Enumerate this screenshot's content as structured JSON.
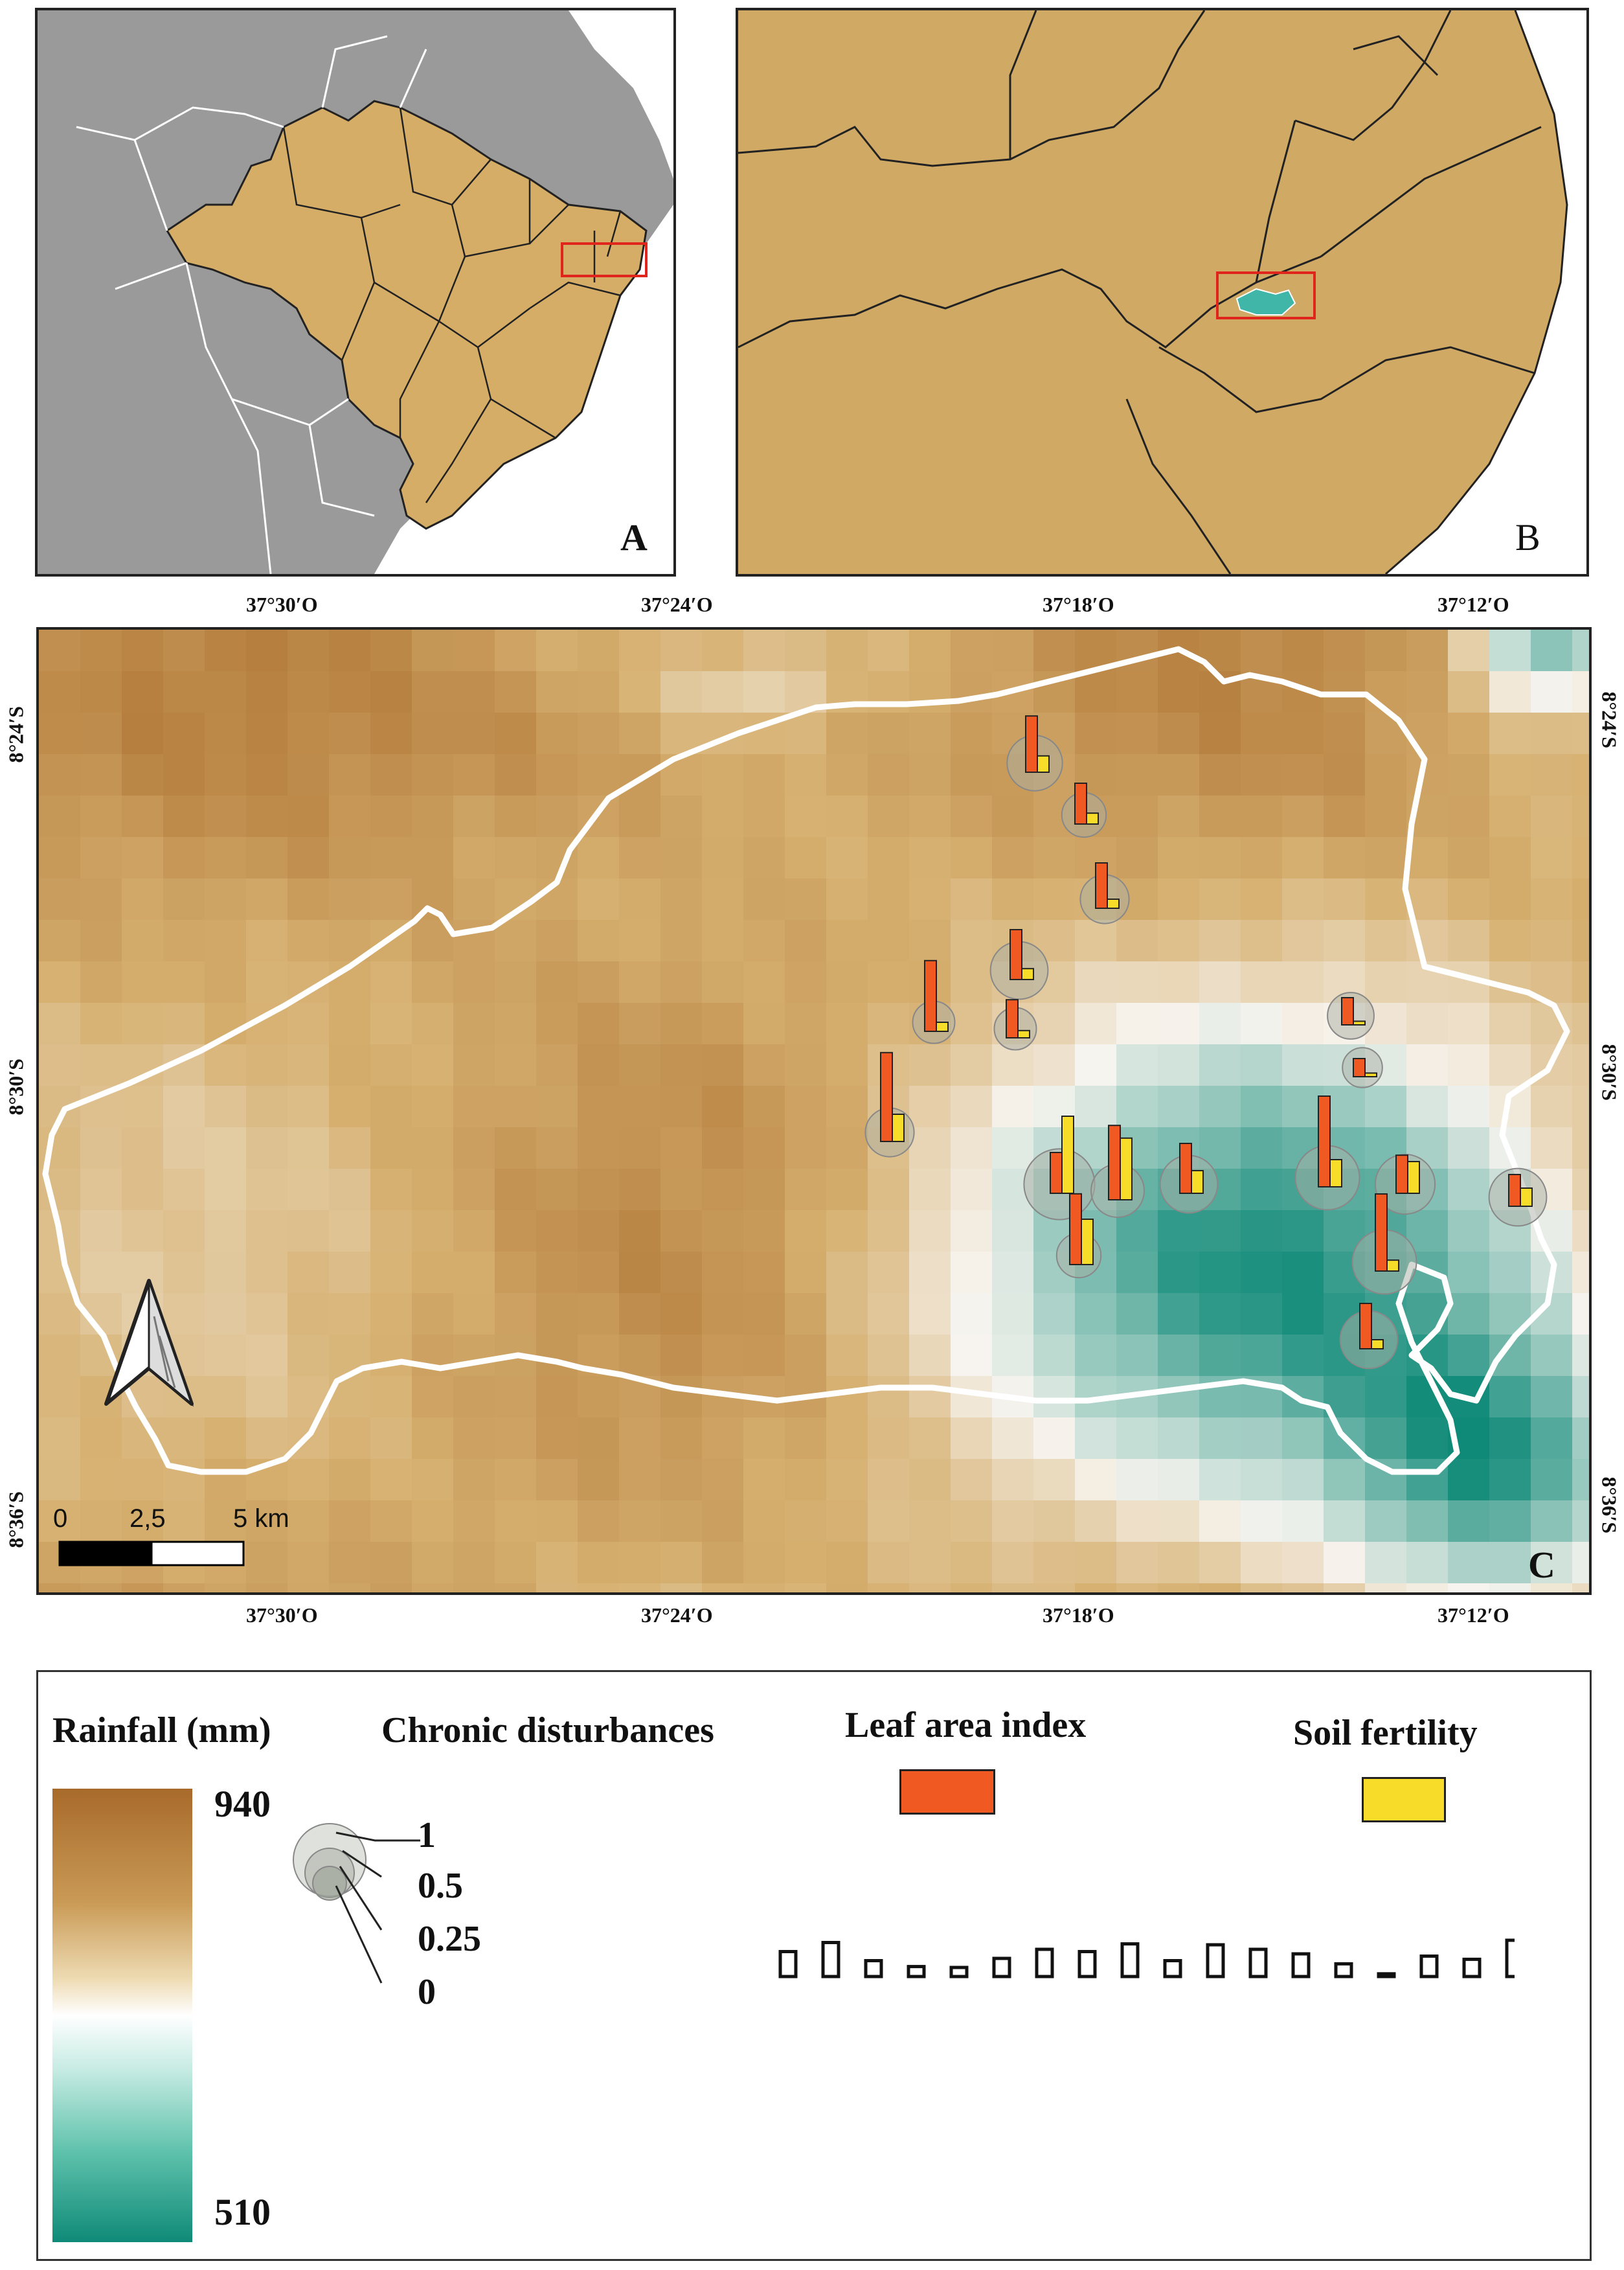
{
  "panels": {
    "a": {
      "label": "A"
    },
    "b": {
      "label": "B"
    },
    "c": {
      "label": "C"
    }
  },
  "colors": {
    "brazil_fill": "#d6ad66",
    "ocean_land": "#9a9a9a",
    "study_area": "#3fb6a8",
    "highlight_box": "#e0261c",
    "rain_high": "#a86a2a",
    "rain_mid": "#f7f4ef",
    "rain_low": "#0f8a78",
    "leaf_area": "#f05a22",
    "soil_fertility": "#f8dc2a"
  },
  "coordinates": {
    "top": [
      "37°30′O",
      "37°24′O",
      "37°18′O",
      "37°12′O"
    ],
    "bottom": [
      "37°30′O",
      "37°24′O",
      "37°18′O",
      "37°12′O"
    ],
    "left": [
      "8°24′S",
      "8°30′S",
      "8°36′S"
    ],
    "right": [
      "8°24′S",
      "8°30′S",
      "8°36′S"
    ]
  },
  "scale_bar": {
    "labels": [
      "0",
      "2,5",
      "5 km"
    ]
  },
  "north_arrow": {
    "icon": "north-arrow-icon"
  },
  "legend": {
    "rainfall": {
      "title": "Rainfall (mm)",
      "max": "940",
      "min": "510"
    },
    "chronic": {
      "title": "Chronic disturbances",
      "values": [
        "1",
        "0.5",
        "0.25",
        "0"
      ]
    },
    "leaf": {
      "title": "Leaf area index"
    },
    "soil": {
      "title": "Soil fertility"
    }
  },
  "sites": [
    {
      "id": 1,
      "leaf": 0.62,
      "soil": 0.18,
      "cd": 0.55
    },
    {
      "id": 2,
      "leaf": 0.45,
      "soil": 0.12,
      "cd": 0.3
    },
    {
      "id": 3,
      "leaf": 0.5,
      "soil": 0.1,
      "cd": 0.4
    },
    {
      "id": 4,
      "leaf": 0.55,
      "soil": 0.12,
      "cd": 0.6
    },
    {
      "id": 5,
      "leaf": 0.78,
      "soil": 0.1,
      "cd": 0.25
    },
    {
      "id": 6,
      "leaf": 0.42,
      "soil": 0.08,
      "cd": 0.25
    },
    {
      "id": 7,
      "leaf": 0.3,
      "soil": 0.04,
      "cd": 0.35
    },
    {
      "id": 8,
      "leaf": 0.2,
      "soil": 0.04,
      "cd": 0.2
    },
    {
      "id": 9,
      "leaf": 0.98,
      "soil": 0.3,
      "cd": 0.4
    },
    {
      "id": 10,
      "leaf": 0.45,
      "soil": 0.85,
      "cd": 0.9
    },
    {
      "id": 11,
      "leaf": 0.82,
      "soil": 0.68,
      "cd": 0.5
    },
    {
      "id": 12,
      "leaf": 0.55,
      "soil": 0.25,
      "cd": 0.6
    },
    {
      "id": 13,
      "leaf": 1.0,
      "soil": 0.3,
      "cd": 0.75
    },
    {
      "id": 14,
      "leaf": 0.42,
      "soil": 0.35,
      "cd": 0.65
    },
    {
      "id": 15,
      "leaf": 0.35,
      "soil": 0.2,
      "cd": 0.6
    },
    {
      "id": 16,
      "leaf": 0.78,
      "soil": 0.5,
      "cd": 0.3
    },
    {
      "id": 17,
      "leaf": 0.85,
      "soil": 0.12,
      "cd": 0.75
    },
    {
      "id": 18,
      "leaf": 0.5,
      "soil": 0.1,
      "cd": 0.6
    }
  ]
}
